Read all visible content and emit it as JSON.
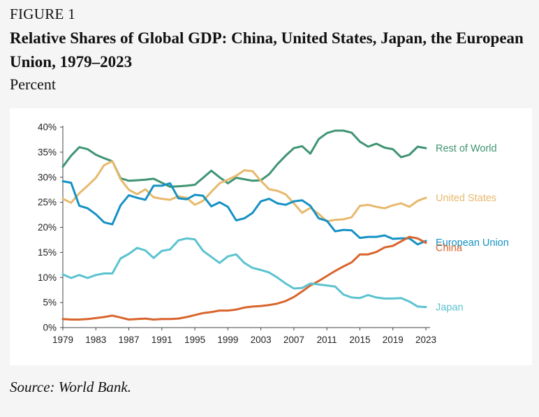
{
  "figure": {
    "label": "FIGURE 1",
    "title": "Relative Shares of Global GDP: China, United States, Japan, the European Union, 1979–2023",
    "unit": "Percent",
    "source": "Source: World Bank."
  },
  "chart_data": {
    "type": "line",
    "title": "Relative Shares of Global GDP: China, United States, Japan, the European Union, 1979–2023",
    "ylabel": "Percent",
    "xlabel": "",
    "xlim": [
      1979,
      2023
    ],
    "ylim": [
      0,
      40
    ],
    "x_ticks": [
      "1979",
      "1983",
      "1987",
      "1991",
      "1995",
      "1999",
      "2003",
      "2007",
      "2011",
      "2015",
      "2019",
      "2023"
    ],
    "y_ticks": [
      "0%",
      "5%",
      "10%",
      "15%",
      "20%",
      "25%",
      "30%",
      "35%",
      "40%"
    ],
    "grid": false,
    "legend": "inline-right",
    "x": [
      1979,
      1980,
      1981,
      1982,
      1983,
      1984,
      1985,
      1986,
      1987,
      1988,
      1989,
      1990,
      1991,
      1992,
      1993,
      1994,
      1995,
      1996,
      1997,
      1998,
      1999,
      2000,
      2001,
      2002,
      2003,
      2004,
      2005,
      2006,
      2007,
      2008,
      2009,
      2010,
      2011,
      2012,
      2013,
      2014,
      2015,
      2016,
      2017,
      2018,
      2019,
      2020,
      2021,
      2022,
      2023
    ],
    "series": [
      {
        "name": "Rest of World",
        "color": "#3f9473",
        "values": [
          32.1,
          34.3,
          36.0,
          35.6,
          34.5,
          33.8,
          33.2,
          29.8,
          29.3,
          29.4,
          29.5,
          29.7,
          28.9,
          28.1,
          28.2,
          28.3,
          28.5,
          29.9,
          31.3,
          30.0,
          28.8,
          29.9,
          29.6,
          29.3,
          29.4,
          30.6,
          32.6,
          34.3,
          35.8,
          36.2,
          34.7,
          37.6,
          38.8,
          39.3,
          39.3,
          38.9,
          37.1,
          36.1,
          36.7,
          35.9,
          35.6,
          34.0,
          34.5,
          36.1,
          35.8
        ]
      },
      {
        "name": "United States",
        "color": "#e8b96d",
        "values": [
          25.7,
          24.9,
          26.8,
          28.3,
          29.9,
          32.4,
          33.2,
          29.6,
          27.5,
          26.6,
          27.6,
          26.0,
          25.7,
          25.5,
          26.2,
          25.9,
          24.5,
          25.3,
          27.1,
          28.8,
          29.5,
          30.3,
          31.4,
          31.2,
          29.3,
          27.6,
          27.3,
          26.6,
          24.8,
          22.9,
          23.9,
          22.7,
          21.2,
          21.5,
          21.6,
          22.0,
          24.3,
          24.5,
          24.1,
          23.8,
          24.4,
          24.8,
          24.1,
          25.3,
          25.9
        ]
      },
      {
        "name": "European Union",
        "color": "#1591c4",
        "values": [
          29.2,
          28.9,
          24.3,
          23.8,
          22.6,
          21.0,
          20.6,
          24.4,
          26.4,
          25.9,
          25.5,
          28.3,
          28.3,
          28.8,
          25.8,
          25.6,
          26.5,
          26.3,
          24.2,
          25.0,
          24.1,
          21.4,
          21.8,
          22.9,
          25.2,
          25.7,
          24.8,
          24.5,
          25.2,
          25.4,
          24.3,
          21.8,
          21.3,
          19.2,
          19.5,
          19.4,
          17.9,
          18.1,
          18.1,
          18.4,
          17.7,
          17.8,
          17.8,
          16.6,
          17.3
        ]
      },
      {
        "name": "China",
        "color": "#d9642c",
        "values": [
          1.7,
          1.6,
          1.6,
          1.7,
          1.9,
          2.1,
          2.4,
          2.0,
          1.6,
          1.7,
          1.8,
          1.6,
          1.7,
          1.7,
          1.8,
          2.1,
          2.5,
          2.9,
          3.1,
          3.4,
          3.4,
          3.6,
          4.0,
          4.2,
          4.3,
          4.5,
          4.8,
          5.3,
          6.1,
          7.2,
          8.4,
          9.3,
          10.3,
          11.3,
          12.2,
          13.0,
          14.6,
          14.6,
          15.1,
          16.0,
          16.3,
          17.2,
          18.1,
          17.8,
          16.9
        ]
      },
      {
        "name": "Japan",
        "color": "#5bc3cf",
        "values": [
          10.6,
          9.9,
          10.5,
          9.9,
          10.5,
          10.8,
          10.8,
          13.8,
          14.7,
          15.9,
          15.4,
          13.9,
          15.3,
          15.6,
          17.4,
          17.8,
          17.6,
          15.3,
          14.1,
          12.9,
          14.2,
          14.6,
          12.9,
          11.9,
          11.5,
          11.0,
          10.0,
          8.8,
          7.8,
          7.9,
          8.8,
          8.6,
          8.4,
          8.2,
          6.6,
          6.0,
          5.9,
          6.5,
          6.0,
          5.8,
          5.8,
          5.9,
          5.2,
          4.2,
          4.1
        ]
      }
    ]
  }
}
